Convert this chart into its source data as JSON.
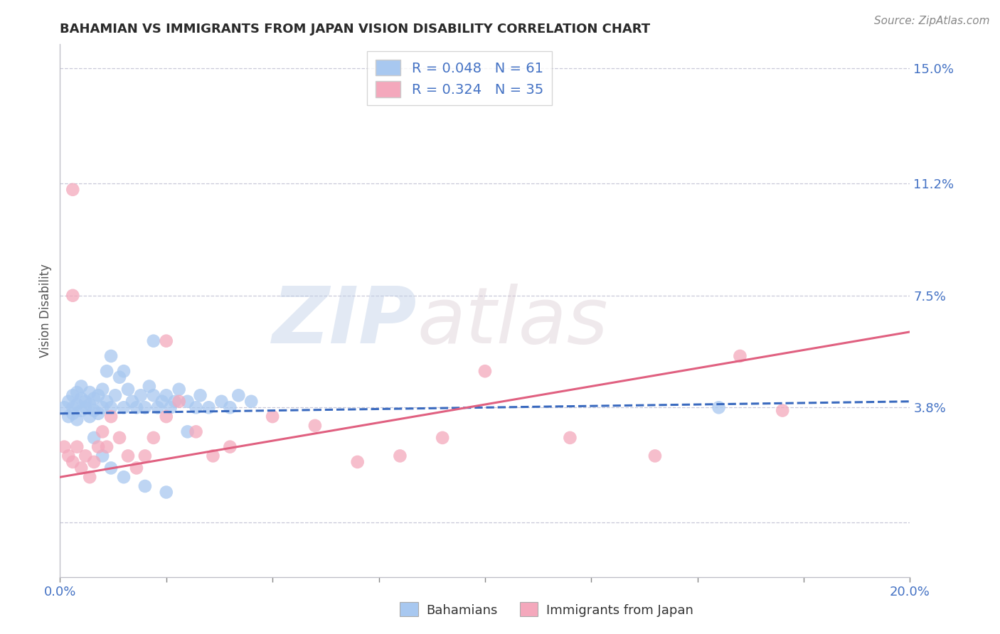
{
  "title": "BAHAMIAN VS IMMIGRANTS FROM JAPAN VISION DISABILITY CORRELATION CHART",
  "source": "Source: ZipAtlas.com",
  "ylabel": "Vision Disability",
  "legend_label1": "Bahamians",
  "legend_label2": "Immigrants from Japan",
  "r1": 0.048,
  "n1": 61,
  "r2": 0.324,
  "n2": 35,
  "color1": "#a8c8f0",
  "color2": "#f4a8bc",
  "line1_color": "#3a6abf",
  "line2_color": "#e06080",
  "xmin": 0.0,
  "xmax": 0.2,
  "ymin": -0.018,
  "ymax": 0.158,
  "yticks": [
    0.0,
    0.038,
    0.075,
    0.112,
    0.15
  ],
  "ytick_labels": [
    "",
    "3.8%",
    "7.5%",
    "11.2%",
    "15.0%"
  ],
  "xticks": [
    0.0,
    0.025,
    0.05,
    0.075,
    0.1,
    0.125,
    0.15,
    0.175,
    0.2
  ],
  "xtick_labels": [
    "0.0%",
    "",
    "",
    "",
    "",
    "",
    "",
    "",
    "20.0%"
  ],
  "background_color": "#ffffff",
  "watermark_zip": "ZIP",
  "watermark_atlas": "atlas",
  "title_color": "#2a2a2a",
  "axis_label_color": "#4472c4",
  "source_color": "#888888",
  "grid_color": "#c8c8d8",
  "spine_color": "#c0c0c8",
  "blue_scatter_x": [
    0.001,
    0.002,
    0.002,
    0.003,
    0.003,
    0.003,
    0.004,
    0.004,
    0.004,
    0.005,
    0.005,
    0.005,
    0.006,
    0.006,
    0.007,
    0.007,
    0.007,
    0.008,
    0.008,
    0.009,
    0.009,
    0.01,
    0.01,
    0.011,
    0.011,
    0.012,
    0.012,
    0.013,
    0.014,
    0.015,
    0.015,
    0.016,
    0.017,
    0.018,
    0.019,
    0.02,
    0.021,
    0.022,
    0.023,
    0.024,
    0.025,
    0.026,
    0.027,
    0.028,
    0.03,
    0.032,
    0.033,
    0.035,
    0.038,
    0.04,
    0.042,
    0.045,
    0.008,
    0.01,
    0.012,
    0.015,
    0.02,
    0.025,
    0.03,
    0.155,
    0.022
  ],
  "blue_scatter_y": [
    0.038,
    0.04,
    0.035,
    0.038,
    0.042,
    0.036,
    0.039,
    0.043,
    0.034,
    0.041,
    0.037,
    0.045,
    0.038,
    0.04,
    0.039,
    0.043,
    0.035,
    0.041,
    0.037,
    0.042,
    0.036,
    0.044,
    0.038,
    0.05,
    0.04,
    0.038,
    0.055,
    0.042,
    0.048,
    0.038,
    0.05,
    0.044,
    0.04,
    0.038,
    0.042,
    0.038,
    0.045,
    0.042,
    0.038,
    0.04,
    0.042,
    0.038,
    0.04,
    0.044,
    0.04,
    0.038,
    0.042,
    0.038,
    0.04,
    0.038,
    0.042,
    0.04,
    0.028,
    0.022,
    0.018,
    0.015,
    0.012,
    0.01,
    0.03,
    0.038,
    0.06
  ],
  "pink_scatter_x": [
    0.001,
    0.002,
    0.003,
    0.004,
    0.005,
    0.006,
    0.007,
    0.008,
    0.009,
    0.01,
    0.011,
    0.012,
    0.014,
    0.016,
    0.018,
    0.02,
    0.022,
    0.025,
    0.028,
    0.032,
    0.036,
    0.04,
    0.05,
    0.06,
    0.07,
    0.08,
    0.09,
    0.1,
    0.12,
    0.14,
    0.16,
    0.003,
    0.003,
    0.025,
    0.17
  ],
  "pink_scatter_y": [
    0.025,
    0.022,
    0.02,
    0.025,
    0.018,
    0.022,
    0.015,
    0.02,
    0.025,
    0.03,
    0.025,
    0.035,
    0.028,
    0.022,
    0.018,
    0.022,
    0.028,
    0.035,
    0.04,
    0.03,
    0.022,
    0.025,
    0.035,
    0.032,
    0.02,
    0.022,
    0.028,
    0.05,
    0.028,
    0.022,
    0.055,
    0.075,
    0.11,
    0.06,
    0.037
  ],
  "line1_x": [
    0.0,
    0.2
  ],
  "line1_y": [
    0.036,
    0.04
  ],
  "line2_x": [
    0.0,
    0.2
  ],
  "line2_y": [
    0.015,
    0.063
  ]
}
